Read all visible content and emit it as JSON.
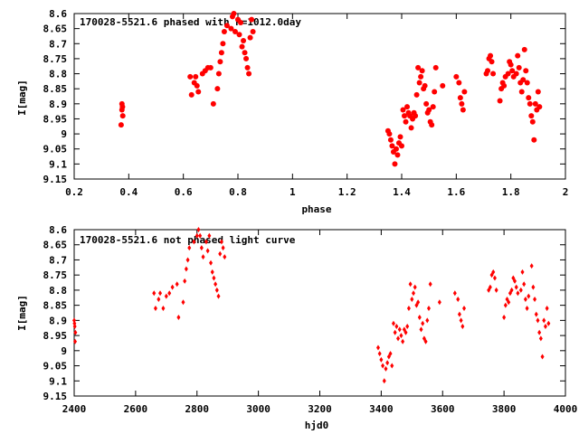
{
  "chart_data": [
    {
      "type": "scatter",
      "title": "170028-5521.6 phased with P=1012.0day",
      "xlabel": "phase",
      "ylabel": "I[mag]",
      "xlim": [
        0.2,
        2.0
      ],
      "ylim": [
        8.6,
        9.15
      ],
      "y_inverted": true,
      "grid": false,
      "marker_color": "#ff0000",
      "marker": "filled-circle",
      "x_ticks": [
        "0.2",
        "0.4",
        "0.6",
        "0.8",
        "1",
        "1.2",
        "1.4",
        "1.6",
        "1.8",
        "2"
      ],
      "y_ticks": [
        "8.6",
        "8.65",
        "8.7",
        "8.75",
        "8.8",
        "8.85",
        "8.9",
        "8.95",
        "9",
        "9.05",
        "9.1",
        "9.15"
      ],
      "series": [
        {
          "points": [
            [
              0.375,
              8.9
            ],
            [
              0.375,
              8.92
            ],
            [
              0.378,
              8.94
            ],
            [
              0.372,
              8.97
            ],
            [
              0.377,
              8.91
            ],
            [
              0.625,
              8.81
            ],
            [
              0.63,
              8.87
            ],
            [
              0.64,
              8.83
            ],
            [
              0.645,
              8.81
            ],
            [
              0.65,
              8.84
            ],
            [
              0.655,
              8.86
            ],
            [
              0.67,
              8.8
            ],
            [
              0.68,
              8.79
            ],
            [
              0.69,
              8.78
            ],
            [
              0.7,
              8.78
            ],
            [
              0.71,
              8.9
            ],
            [
              0.725,
              8.85
            ],
            [
              0.73,
              8.8
            ],
            [
              0.735,
              8.76
            ],
            [
              0.74,
              8.73
            ],
            [
              0.745,
              8.7
            ],
            [
              0.75,
              8.66
            ],
            [
              0.76,
              8.64
            ],
            [
              0.775,
              8.65
            ],
            [
              0.78,
              8.61
            ],
            [
              0.785,
              8.6
            ],
            [
              0.79,
              8.66
            ],
            [
              0.8,
              8.62
            ],
            [
              0.805,
              8.67
            ],
            [
              0.81,
              8.63
            ],
            [
              0.815,
              8.71
            ],
            [
              0.82,
              8.69
            ],
            [
              0.825,
              8.73
            ],
            [
              0.83,
              8.75
            ],
            [
              0.835,
              8.78
            ],
            [
              0.84,
              8.8
            ],
            [
              0.845,
              8.68
            ],
            [
              0.85,
              8.62
            ],
            [
              0.855,
              8.66
            ],
            [
              1.35,
              8.99
            ],
            [
              1.355,
              9.0
            ],
            [
              1.36,
              9.02
            ],
            [
              1.365,
              9.04
            ],
            [
              1.37,
              9.06
            ],
            [
              1.375,
              9.1
            ],
            [
              1.38,
              9.05
            ],
            [
              1.385,
              9.07
            ],
            [
              1.39,
              9.03
            ],
            [
              1.395,
              9.01
            ],
            [
              1.4,
              9.04
            ],
            [
              1.405,
              8.92
            ],
            [
              1.41,
              8.94
            ],
            [
              1.415,
              8.96
            ],
            [
              1.42,
              8.91
            ],
            [
              1.425,
              8.93
            ],
            [
              1.43,
              8.94
            ],
            [
              1.435,
              8.98
            ],
            [
              1.44,
              8.95
            ],
            [
              1.445,
              8.93
            ],
            [
              1.45,
              8.94
            ],
            [
              1.455,
              8.87
            ],
            [
              1.46,
              8.78
            ],
            [
              1.465,
              8.83
            ],
            [
              1.47,
              8.81
            ],
            [
              1.475,
              8.79
            ],
            [
              1.48,
              8.85
            ],
            [
              1.485,
              8.84
            ],
            [
              1.49,
              8.9
            ],
            [
              1.495,
              8.93
            ],
            [
              1.5,
              8.92
            ],
            [
              1.505,
              8.96
            ],
            [
              1.51,
              8.97
            ],
            [
              1.515,
              8.91
            ],
            [
              1.52,
              8.86
            ],
            [
              1.525,
              8.78
            ],
            [
              1.55,
              8.84
            ],
            [
              1.6,
              8.81
            ],
            [
              1.61,
              8.83
            ],
            [
              1.615,
              8.88
            ],
            [
              1.62,
              8.9
            ],
            [
              1.625,
              8.92
            ],
            [
              1.63,
              8.86
            ],
            [
              1.71,
              8.8
            ],
            [
              1.715,
              8.79
            ],
            [
              1.72,
              8.75
            ],
            [
              1.725,
              8.74
            ],
            [
              1.73,
              8.76
            ],
            [
              1.735,
              8.8
            ],
            [
              1.76,
              8.89
            ],
            [
              1.765,
              8.85
            ],
            [
              1.77,
              8.83
            ],
            [
              1.775,
              8.84
            ],
            [
              1.78,
              8.81
            ],
            [
              1.79,
              8.8
            ],
            [
              1.795,
              8.76
            ],
            [
              1.8,
              8.77
            ],
            [
              1.805,
              8.79
            ],
            [
              1.81,
              8.81
            ],
            [
              1.82,
              8.8
            ],
            [
              1.825,
              8.74
            ],
            [
              1.83,
              8.78
            ],
            [
              1.835,
              8.83
            ],
            [
              1.84,
              8.86
            ],
            [
              1.845,
              8.82
            ],
            [
              1.85,
              8.72
            ],
            [
              1.855,
              8.79
            ],
            [
              1.86,
              8.83
            ],
            [
              1.865,
              8.88
            ],
            [
              1.87,
              8.9
            ],
            [
              1.875,
              8.94
            ],
            [
              1.88,
              8.96
            ],
            [
              1.885,
              9.02
            ],
            [
              1.89,
              8.9
            ],
            [
              1.895,
              8.92
            ],
            [
              1.9,
              8.86
            ],
            [
              1.905,
              8.91
            ]
          ]
        }
      ]
    },
    {
      "type": "scatter",
      "title": "170028-5521.6 not phased light curve",
      "xlabel": "hjd0",
      "ylabel": "I[mag]",
      "xlim": [
        2400,
        4000
      ],
      "ylim": [
        8.6,
        9.15
      ],
      "y_inverted": true,
      "grid": false,
      "marker_color": "#ff0000",
      "marker": "small-diamond",
      "x_ticks": [
        "2400",
        "2600",
        "2800",
        "3000",
        "3200",
        "3400",
        "3600",
        "3800",
        "4000"
      ],
      "y_ticks": [
        "8.6",
        "8.65",
        "8.7",
        "8.75",
        "8.8",
        "8.85",
        "8.9",
        "8.95",
        "9",
        "9.05",
        "9.1",
        "9.15"
      ],
      "series": [
        {
          "points": [
            [
              2400,
              8.9
            ],
            [
              2402,
              8.92
            ],
            [
              2404,
              8.94
            ],
            [
              2403,
              8.97
            ],
            [
              2401,
              8.91
            ],
            [
              2660,
              8.81
            ],
            [
              2665,
              8.86
            ],
            [
              2675,
              8.83
            ],
            [
              2680,
              8.81
            ],
            [
              2690,
              8.86
            ],
            [
              2700,
              8.82
            ],
            [
              2710,
              8.81
            ],
            [
              2720,
              8.79
            ],
            [
              2735,
              8.78
            ],
            [
              2740,
              8.89
            ],
            [
              2755,
              8.84
            ],
            [
              2760,
              8.77
            ],
            [
              2765,
              8.73
            ],
            [
              2770,
              8.7
            ],
            [
              2775,
              8.66
            ],
            [
              2790,
              8.64
            ],
            [
              2800,
              8.62
            ],
            [
              2805,
              8.6
            ],
            [
              2810,
              8.62
            ],
            [
              2815,
              8.66
            ],
            [
              2820,
              8.69
            ],
            [
              2830,
              8.64
            ],
            [
              2835,
              8.67
            ],
            [
              2840,
              8.62
            ],
            [
              2845,
              8.71
            ],
            [
              2850,
              8.74
            ],
            [
              2855,
              8.76
            ],
            [
              2860,
              8.78
            ],
            [
              2865,
              8.8
            ],
            [
              2870,
              8.82
            ],
            [
              2875,
              8.68
            ],
            [
              2880,
              8.64
            ],
            [
              2885,
              8.66
            ],
            [
              2890,
              8.69
            ],
            [
              3390,
              8.99
            ],
            [
              3395,
              9.01
            ],
            [
              3400,
              9.03
            ],
            [
              3405,
              9.05
            ],
            [
              3410,
              9.1
            ],
            [
              3415,
              9.06
            ],
            [
              3420,
              9.04
            ],
            [
              3425,
              9.02
            ],
            [
              3430,
              9.01
            ],
            [
              3435,
              9.05
            ],
            [
              3440,
              8.91
            ],
            [
              3445,
              8.94
            ],
            [
              3450,
              8.92
            ],
            [
              3455,
              8.96
            ],
            [
              3460,
              8.93
            ],
            [
              3465,
              8.95
            ],
            [
              3470,
              8.97
            ],
            [
              3475,
              8.93
            ],
            [
              3480,
              8.94
            ],
            [
              3485,
              8.92
            ],
            [
              3490,
              8.86
            ],
            [
              3495,
              8.78
            ],
            [
              3500,
              8.83
            ],
            [
              3505,
              8.81
            ],
            [
              3510,
              8.79
            ],
            [
              3515,
              8.85
            ],
            [
              3520,
              8.84
            ],
            [
              3525,
              8.89
            ],
            [
              3530,
              8.93
            ],
            [
              3535,
              8.91
            ],
            [
              3540,
              8.96
            ],
            [
              3545,
              8.97
            ],
            [
              3550,
              8.9
            ],
            [
              3555,
              8.86
            ],
            [
              3560,
              8.78
            ],
            [
              3590,
              8.84
            ],
            [
              3640,
              8.81
            ],
            [
              3650,
              8.83
            ],
            [
              3655,
              8.88
            ],
            [
              3660,
              8.9
            ],
            [
              3665,
              8.92
            ],
            [
              3670,
              8.86
            ],
            [
              3750,
              8.8
            ],
            [
              3755,
              8.79
            ],
            [
              3760,
              8.75
            ],
            [
              3765,
              8.74
            ],
            [
              3770,
              8.76
            ],
            [
              3775,
              8.8
            ],
            [
              3800,
              8.89
            ],
            [
              3805,
              8.85
            ],
            [
              3810,
              8.83
            ],
            [
              3815,
              8.84
            ],
            [
              3820,
              8.81
            ],
            [
              3825,
              8.8
            ],
            [
              3830,
              8.76
            ],
            [
              3835,
              8.77
            ],
            [
              3840,
              8.79
            ],
            [
              3845,
              8.81
            ],
            [
              3855,
              8.8
            ],
            [
              3860,
              8.74
            ],
            [
              3865,
              8.78
            ],
            [
              3870,
              8.83
            ],
            [
              3875,
              8.86
            ],
            [
              3880,
              8.82
            ],
            [
              3890,
              8.72
            ],
            [
              3895,
              8.79
            ],
            [
              3900,
              8.83
            ],
            [
              3905,
              8.88
            ],
            [
              3910,
              8.9
            ],
            [
              3915,
              8.94
            ],
            [
              3920,
              8.96
            ],
            [
              3925,
              9.02
            ],
            [
              3930,
              8.9
            ],
            [
              3935,
              8.92
            ],
            [
              3940,
              8.86
            ],
            [
              3945,
              8.91
            ]
          ]
        }
      ]
    }
  ]
}
